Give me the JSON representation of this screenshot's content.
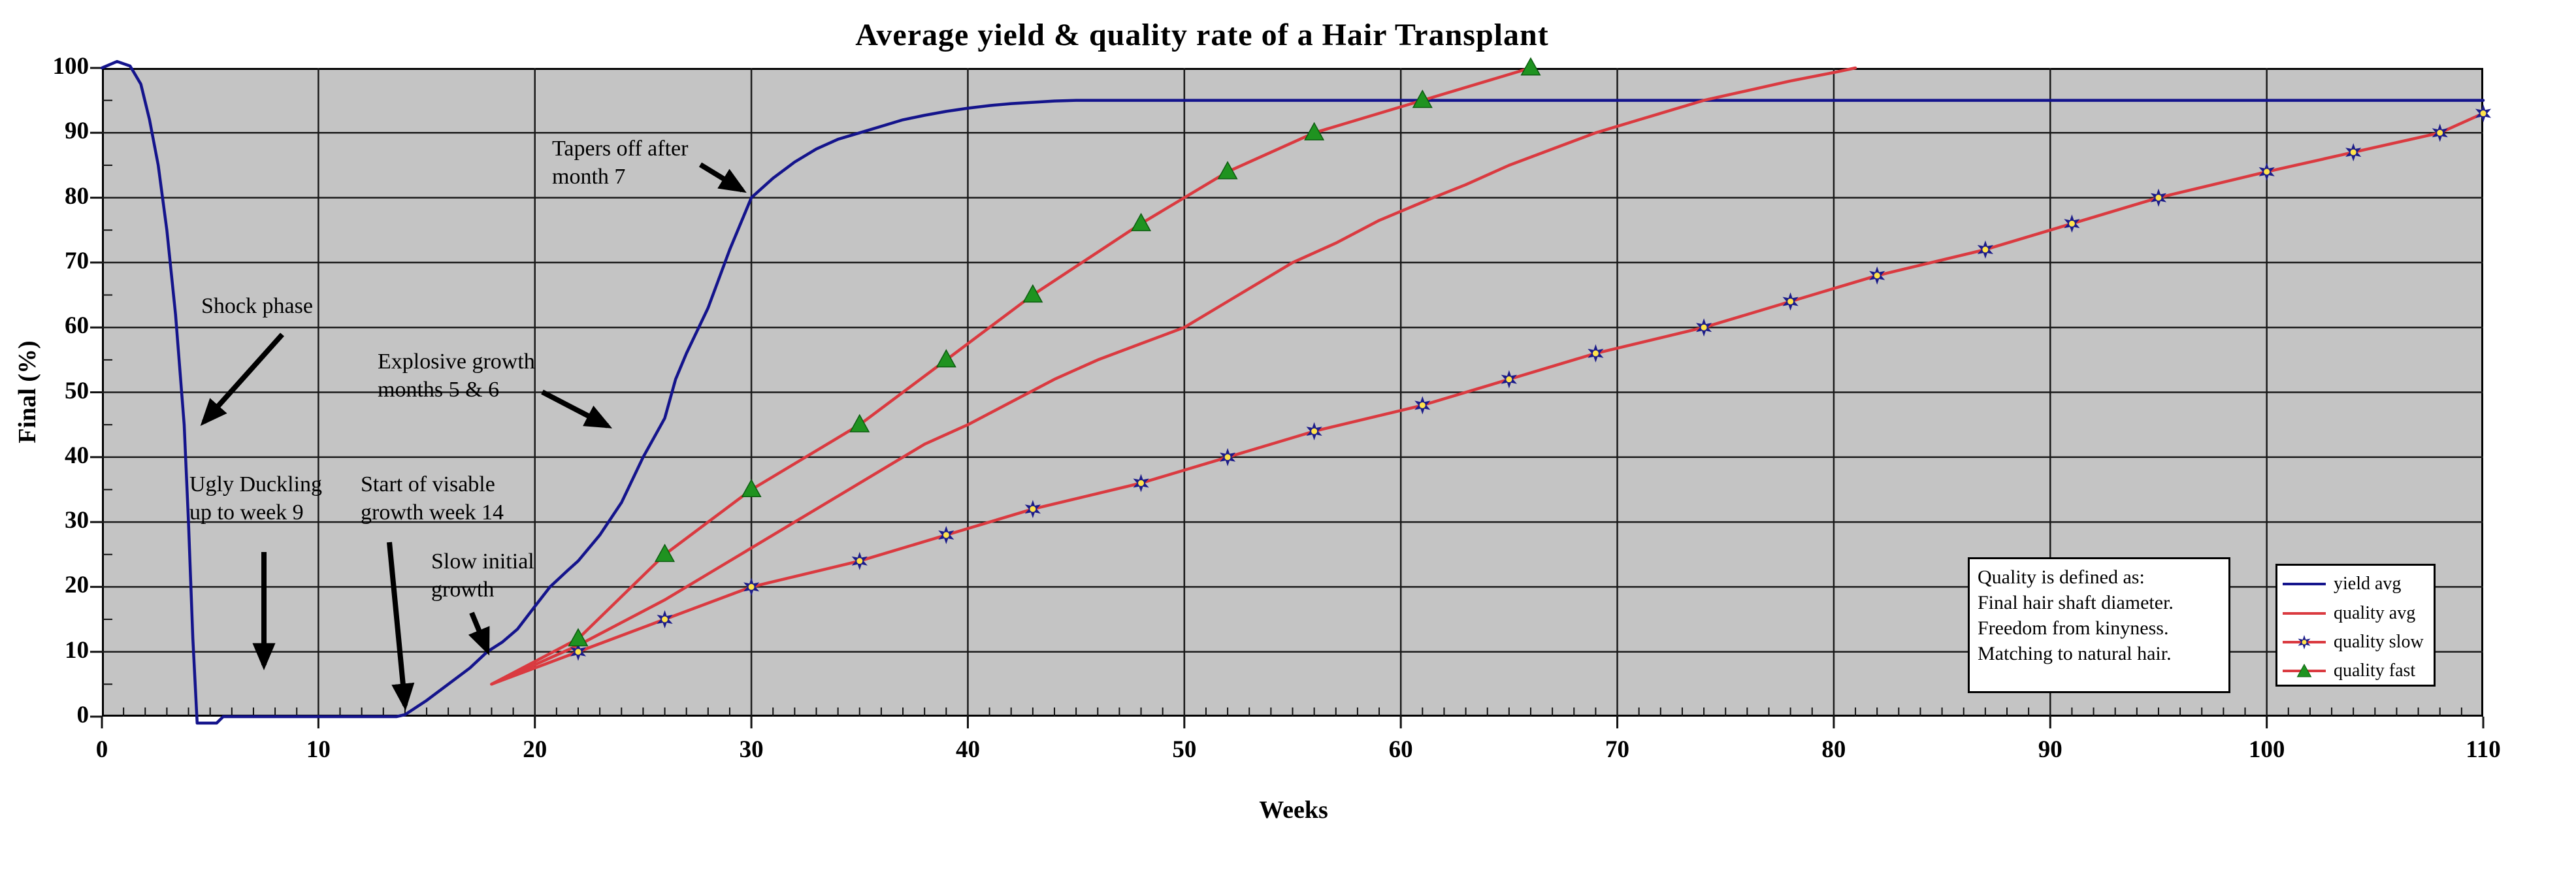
{
  "chart_data": {
    "type": "line",
    "title": "Average yield & quality rate of a Hair Transplant",
    "xlabel": "Weeks",
    "ylabel": "Final (%)",
    "xlim": [
      0,
      110
    ],
    "ylim": [
      0,
      100
    ],
    "x_tick_step": 10,
    "x_minor_step": 1,
    "y_tick_step": 10,
    "y_minor_step": 5,
    "grid": true,
    "plot_bg_color": "#c4c4c4",
    "grid_color": "#1a1a1a",
    "legend_position": "right-inside",
    "series": [
      {
        "name": "yield avg",
        "color": "#14148c",
        "marker": "none",
        "points": [
          [
            0,
            100
          ],
          [
            0.7,
            101
          ],
          [
            1.3,
            100.3
          ],
          [
            1.8,
            97.5
          ],
          [
            2.2,
            92
          ],
          [
            2.6,
            85
          ],
          [
            3,
            75
          ],
          [
            3.4,
            62
          ],
          [
            3.8,
            45
          ],
          [
            4,
            30
          ],
          [
            4.2,
            12
          ],
          [
            4.4,
            -1
          ],
          [
            5.3,
            -1
          ],
          [
            5.6,
            0
          ],
          [
            13.6,
            0
          ],
          [
            14,
            0.3
          ],
          [
            15,
            2.5
          ],
          [
            16,
            5
          ],
          [
            17,
            7.5
          ],
          [
            17.8,
            10
          ],
          [
            18.5,
            11.5
          ],
          [
            19.2,
            13.5
          ],
          [
            20,
            17
          ],
          [
            20.7,
            20
          ],
          [
            21.5,
            22.5
          ],
          [
            22,
            24
          ],
          [
            23,
            28
          ],
          [
            24,
            33
          ],
          [
            25,
            40
          ],
          [
            26,
            46
          ],
          [
            26.5,
            52
          ],
          [
            27,
            56
          ],
          [
            28,
            63
          ],
          [
            29,
            72
          ],
          [
            30,
            80
          ],
          [
            31,
            83
          ],
          [
            32,
            85.5
          ],
          [
            33,
            87.5
          ],
          [
            34,
            89
          ],
          [
            35,
            90
          ],
          [
            36,
            91
          ],
          [
            37,
            92
          ],
          [
            38,
            92.7
          ],
          [
            39,
            93.3
          ],
          [
            40,
            93.8
          ],
          [
            41,
            94.2
          ],
          [
            42,
            94.5
          ],
          [
            43,
            94.7
          ],
          [
            44,
            94.9
          ],
          [
            45,
            95
          ],
          [
            110,
            95
          ]
        ]
      },
      {
        "name": "quality avg",
        "color": "#da3a40",
        "marker": "none",
        "points": [
          [
            18,
            5
          ],
          [
            20,
            8
          ],
          [
            22,
            11
          ],
          [
            24,
            14.5
          ],
          [
            26,
            18
          ],
          [
            28,
            22
          ],
          [
            30,
            26
          ],
          [
            32,
            30
          ],
          [
            34,
            34
          ],
          [
            36,
            38
          ],
          [
            38,
            42
          ],
          [
            40,
            45
          ],
          [
            42,
            48.5
          ],
          [
            44,
            52
          ],
          [
            46,
            55
          ],
          [
            48,
            57.5
          ],
          [
            50,
            60
          ],
          [
            52,
            64
          ],
          [
            54,
            68
          ],
          [
            55,
            70
          ],
          [
            57,
            73
          ],
          [
            59,
            76.5
          ],
          [
            61.5,
            80
          ],
          [
            63,
            82
          ],
          [
            65,
            85
          ],
          [
            67,
            87.5
          ],
          [
            69,
            90
          ],
          [
            71,
            92
          ],
          [
            74,
            95
          ],
          [
            76,
            96.5
          ],
          [
            78,
            98
          ],
          [
            80,
            99.3
          ],
          [
            81,
            100
          ]
        ]
      },
      {
        "name": "quality slow",
        "color": "#da3a40",
        "marker": "star",
        "marker_color": "#1c1c8a",
        "marker_center_color": "#ffe34d",
        "markers_from": 1,
        "points": [
          [
            18,
            5
          ],
          [
            22,
            10
          ],
          [
            26,
            15
          ],
          [
            30,
            20
          ],
          [
            35,
            24
          ],
          [
            39,
            28
          ],
          [
            43,
            32
          ],
          [
            48,
            36
          ],
          [
            52,
            40
          ],
          [
            56,
            44
          ],
          [
            61,
            48
          ],
          [
            65,
            52
          ],
          [
            69,
            56
          ],
          [
            74,
            60
          ],
          [
            78,
            64
          ],
          [
            82,
            68
          ],
          [
            87,
            72
          ],
          [
            91,
            76
          ],
          [
            95,
            80
          ],
          [
            100,
            84
          ],
          [
            104,
            87
          ],
          [
            108,
            90
          ],
          [
            110,
            93
          ]
        ]
      },
      {
        "name": "quality fast",
        "color": "#da3a40",
        "marker": "triangle",
        "marker_color": "#1f9320",
        "markers_from": 1,
        "points": [
          [
            18,
            5
          ],
          [
            22,
            12
          ],
          [
            26,
            25
          ],
          [
            30,
            35
          ],
          [
            35,
            45
          ],
          [
            39,
            55
          ],
          [
            43,
            65
          ],
          [
            48,
            76
          ],
          [
            52,
            84
          ],
          [
            56,
            90
          ],
          [
            61,
            95
          ],
          [
            66,
            100
          ]
        ]
      }
    ]
  },
  "title": "Average yield & quality rate of a Hair Transplant",
  "axes": {
    "x_title": "Weeks",
    "y_title": "Final (%)"
  },
  "annotations": {
    "shock": {
      "line1": "Shock phase"
    },
    "ugly_duckling": {
      "line1": "Ugly Duckling",
      "line2": "up to week 9"
    },
    "start_visible": {
      "line1": "Start of visable",
      "line2": "growth week 14"
    },
    "slow_initial": {
      "line1": "Slow initial",
      "line2": "growth"
    },
    "explosive": {
      "line1": "Explosive growth",
      "line2": "months 5 & 6"
    },
    "tapers": {
      "line1": "Tapers off after",
      "line2": "month 7"
    }
  },
  "quality_textbox": {
    "line1": "Quality is defined as:",
    "line2": "Final hair shaft diameter.",
    "line3": "Freedom from kinyness.",
    "line4": "Matching to natural hair."
  },
  "legend": {
    "items": [
      {
        "label": "yield avg",
        "line_color": "#14148c",
        "marker": "none"
      },
      {
        "label": "quality avg",
        "line_color": "#da3a40",
        "marker": "none"
      },
      {
        "label": "quality slow",
        "line_color": "#da3a40",
        "marker": "star"
      },
      {
        "label": "quality fast",
        "line_color": "#da3a40",
        "marker": "triangle"
      }
    ]
  }
}
